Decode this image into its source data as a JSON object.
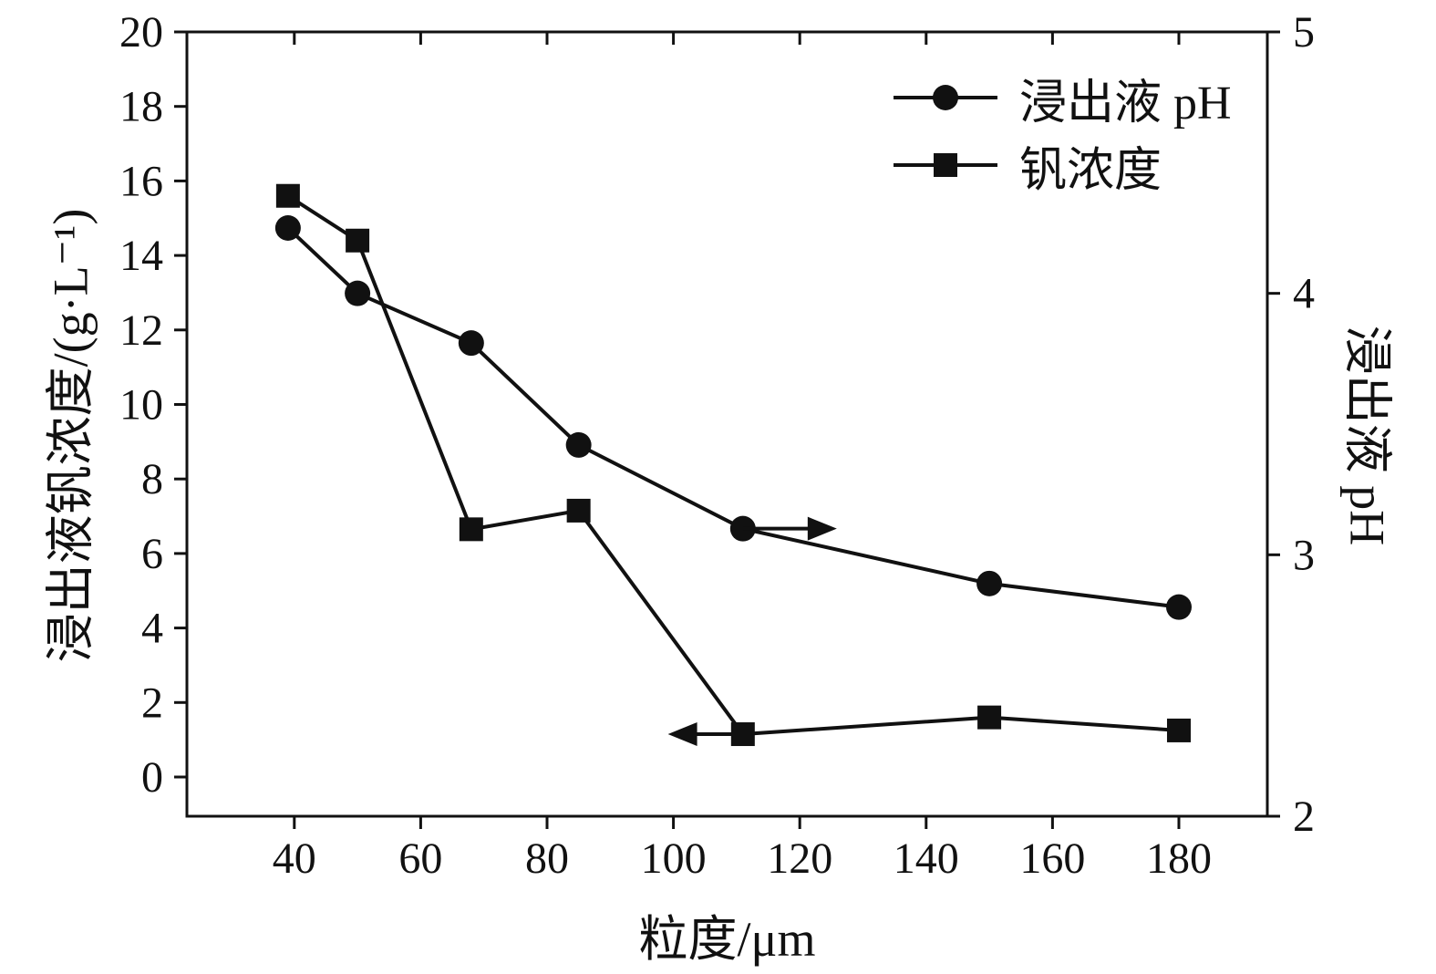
{
  "figure": {
    "background": "#ffffff",
    "line_color": "#111111"
  },
  "chart_data": {
    "type": "line",
    "title": "",
    "xlabel": "粒度/μm",
    "ylabel_left": "浸出液钒浓度/(g·L⁻¹)",
    "ylabel_right": "浸出液 pH",
    "x": [
      39,
      50,
      68,
      85,
      111,
      150,
      180
    ],
    "series": [
      {
        "name": "浸出液 pH",
        "axis": "right",
        "marker": "circle",
        "values": [
          4.25,
          4.0,
          3.81,
          3.42,
          3.1,
          2.89,
          2.8
        ]
      },
      {
        "name": "钒浓度",
        "axis": "left",
        "marker": "square",
        "values": [
          15.6,
          14.4,
          6.65,
          7.15,
          1.15,
          1.6,
          1.25
        ]
      }
    ],
    "x_axis": {
      "min": 23,
      "max": 194,
      "ticks": [
        40,
        60,
        80,
        100,
        120,
        140,
        160,
        180
      ]
    },
    "y_left": {
      "tick_min": 0,
      "tick_max": 20,
      "ticks": [
        0,
        2,
        4,
        6,
        8,
        10,
        12,
        14,
        16,
        18,
        20
      ]
    },
    "y_right": {
      "min": 2,
      "max": 5,
      "ticks": [
        2,
        3,
        4,
        5
      ]
    },
    "grid": false,
    "legend_position": "upper-right",
    "annotations": [
      {
        "type": "arrow",
        "direction": "right",
        "axis": "right",
        "y": 3.1,
        "x_from": 111,
        "x_to": 125
      },
      {
        "type": "arrow",
        "direction": "left",
        "axis": "left",
        "y": 1.15,
        "x_from": 111,
        "x_to": 100
      }
    ]
  }
}
